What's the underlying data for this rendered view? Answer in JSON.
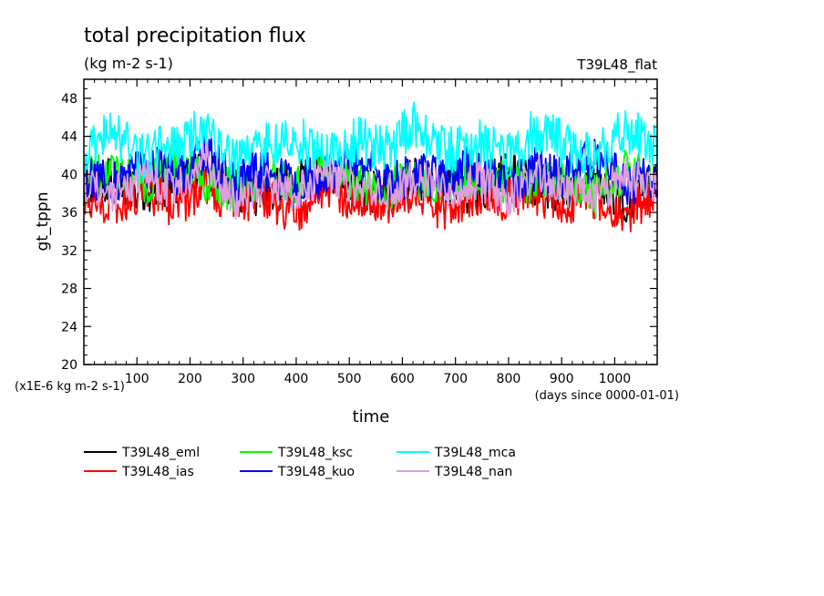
{
  "chart_data": {
    "type": "line",
    "title": "total precipitation flux",
    "subtitle": "(kg m-2 s-1)",
    "run_label": "T39L48_flat",
    "ylabel": "gt_tppn",
    "xlabel": "time",
    "xunit_label": "(days since 0000-01-01)",
    "yscale_label": "(x1E-6 kg m-2 s-1)",
    "xlim": [
      0,
      1080
    ],
    "ylim": [
      20,
      50
    ],
    "x_ticks": [
      100,
      200,
      300,
      400,
      500,
      600,
      700,
      800,
      900,
      1000
    ],
    "y_ticks": [
      20,
      24,
      28,
      32,
      36,
      40,
      44,
      48
    ],
    "grid": false,
    "legend_position": "bottom-left",
    "series": [
      {
        "name": "T39L48_eml",
        "color": "#000000",
        "mean": 38.8,
        "amp": 2.3,
        "values": [
          38.5,
          40.2,
          37.6,
          39.1,
          41.8,
          38.0,
          36.9,
          39.7,
          42.1,
          38.3,
          37.2,
          40.5,
          39.0,
          36.6,
          41.2,
          38.8,
          37.9,
          40.0,
          35.1,
          39.4
        ]
      },
      {
        "name": "T39L48_ias",
        "color": "#ff0000",
        "mean": 38.0,
        "amp": 2.4,
        "values": [
          37.8,
          36.0,
          39.2,
          35.6,
          38.9,
          36.7,
          37.4,
          34.5,
          39.0,
          37.1,
          36.2,
          38.6,
          34.3,
          37.9,
          36.8,
          38.2,
          35.9,
          37.5,
          34.6,
          38.1
        ]
      },
      {
        "name": "T39L48_ksc",
        "color": "#00ff00",
        "mean": 39.2,
        "amp": 2.3,
        "values": [
          39.8,
          41.0,
          38.1,
          43.6,
          39.5,
          37.4,
          40.8,
          38.9,
          41.9,
          39.3,
          37.7,
          40.6,
          38.4,
          41.3,
          39.0,
          38.2,
          40.1,
          36.4,
          41.5,
          39.6
        ]
      },
      {
        "name": "T39L48_kuo",
        "color": "#0000ff",
        "mean": 39.5,
        "amp": 2.4,
        "values": [
          40.1,
          38.6,
          42.3,
          39.7,
          44.6,
          38.9,
          41.2,
          37.8,
          40.6,
          43.9,
          38.4,
          40.9,
          39.2,
          42.7,
          38.1,
          41.4,
          39.8,
          44.1,
          38.7,
          40.3
        ]
      },
      {
        "name": "T39L48_mca",
        "color": "#00ffff",
        "mean": 42.3,
        "amp": 2.6,
        "values": [
          42.5,
          45.8,
          41.0,
          44.2,
          46.3,
          40.8,
          43.1,
          45.0,
          41.6,
          44.7,
          43.3,
          47.9,
          42.0,
          44.9,
          41.7,
          46.4,
          43.5,
          41.2,
          47.1,
          42.8
        ]
      },
      {
        "name": "T39L48_nan",
        "color": "#dda0dd",
        "mean": 38.9,
        "amp": 2.1,
        "values": [
          39.1,
          37.5,
          40.6,
          38.0,
          43.9,
          36.0,
          39.4,
          37.2,
          41.1,
          38.5,
          36.9,
          40.2,
          37.7,
          39.8,
          36.4,
          40.9,
          38.2,
          37.0,
          40.4,
          38.6
        ]
      }
    ]
  }
}
